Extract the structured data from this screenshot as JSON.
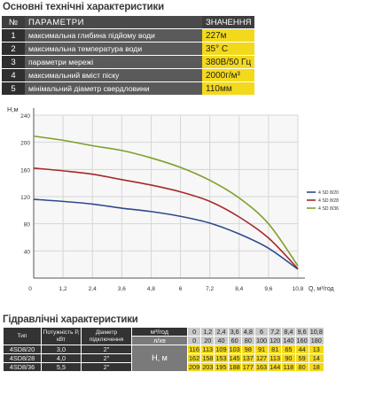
{
  "heading_specs": "Основні технічні характеристики",
  "specs": {
    "header": {
      "no": "№",
      "param": "ПАРАМЕТРИ",
      "value": "ЗНАЧЕННЯ"
    },
    "rows": [
      {
        "no": "1",
        "param": "максимальна глибина підйому води",
        "value": "227м"
      },
      {
        "no": "2",
        "param": "максимальна температура води",
        "value": "35° С"
      },
      {
        "no": "3",
        "param": "параметри мережі",
        "value": "380В/50 Гц"
      },
      {
        "no": "4",
        "param": "максимальний вміст піску",
        "value": "2000г/м³"
      },
      {
        "no": "5",
        "param": "мінімальний діаметр свердловини",
        "value": "110мм"
      }
    ]
  },
  "chart_data": {
    "type": "line",
    "ylabel": "H,м",
    "xlabel": "Q, м³/год",
    "xlim": [
      0,
      10.8
    ],
    "ylim": [
      0,
      240
    ],
    "x_ticks": [
      "0",
      "1,2",
      "2,4",
      "3,6",
      "4,8",
      "6",
      "7,2",
      "8,4",
      "9,6",
      "10,8"
    ],
    "y_ticks": [
      "40",
      "80",
      "120",
      "160",
      "200",
      "240"
    ],
    "x": [
      0,
      1.2,
      2.4,
      3.6,
      4.8,
      6,
      7.2,
      8.4,
      9.6,
      10.8
    ],
    "grid": true,
    "legend_position": "right",
    "series": [
      {
        "name": "4 SD 8/20",
        "color": "#2e4a8c",
        "values": [
          116,
          113,
          109,
          103,
          98,
          91,
          81,
          65,
          44,
          13
        ]
      },
      {
        "name": "4 SD 8/28",
        "color": "#a52a2a",
        "values": [
          162,
          158,
          153,
          145,
          137,
          127,
          113,
          90,
          59,
          14
        ]
      },
      {
        "name": "4 SD 8/36",
        "color": "#7da02a",
        "values": [
          209,
          203,
          195,
          188,
          177,
          163,
          144,
          118,
          80,
          18
        ]
      }
    ]
  },
  "heading_hydro": "Гідравлічні характеристики",
  "hydro_table": {
    "col_type": "Тип",
    "col_power": "Потужність Р, кВт",
    "col_diam": "Діаметр підключення",
    "flow_m3h": "м³/год",
    "flow_lmin": "л/хв",
    "head": "H, м",
    "q_m3h": [
      "0",
      "1,2",
      "2,4",
      "3,6",
      "4,8",
      "6",
      "7,2",
      "8,4",
      "9,6",
      "10,8"
    ],
    "q_lmin": [
      "0",
      "20",
      "40",
      "60",
      "80",
      "100",
      "120",
      "140",
      "160",
      "180"
    ],
    "rows": [
      {
        "type": "4SD8/20",
        "power": "3,0",
        "diam": "2\"",
        "h": [
          "116",
          "113",
          "109",
          "103",
          "98",
          "91",
          "81",
          "65",
          "44",
          "13"
        ]
      },
      {
        "type": "4SD8/28",
        "power": "4,0",
        "diam": "2\"",
        "h": [
          "162",
          "158",
          "153",
          "145",
          "137",
          "127",
          "113",
          "90",
          "59",
          "14"
        ]
      },
      {
        "type": "4SD8/36",
        "power": "5,5",
        "diam": "2\"",
        "h": [
          "209",
          "203",
          "195",
          "188",
          "177",
          "163",
          "144",
          "118",
          "80",
          "18"
        ]
      }
    ]
  }
}
